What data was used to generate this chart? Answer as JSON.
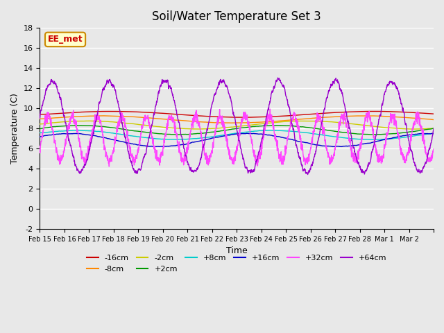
{
  "title": "Soil/Water Temperature Set 3",
  "xlabel": "Time",
  "ylabel": "Temperature (C)",
  "ylim": [
    -2,
    18
  ],
  "xlim": [
    0,
    16
  ],
  "plot_bg_color": "#e8e8e8",
  "annotation_text": "EE_met",
  "annotation_bg": "#ffffcc",
  "annotation_border": "#cc8800",
  "colors": {
    "-16cm": "#cc0000",
    "-8cm": "#ff8800",
    "-2cm": "#cccc00",
    "+2cm": "#009900",
    "+8cm": "#00cccc",
    "+16cm": "#0000cc",
    "+32cm": "#ff44ff",
    "+64cm": "#9900cc"
  },
  "xtick_labels": [
    "Feb 15",
    "Feb 16",
    "Feb 17",
    "Feb 18",
    "Feb 19",
    "Feb 20",
    "Feb 21",
    "Feb 22",
    "Feb 23",
    "Feb 24",
    "Feb 25",
    "Feb 26",
    "Feb 27",
    "Feb 28",
    "Mar 1",
    "Mar 2",
    ""
  ],
  "legend_order": [
    "-16cm",
    "-8cm",
    "-2cm",
    "+2cm",
    "+8cm",
    "+16cm",
    "+32cm",
    "+64cm"
  ]
}
